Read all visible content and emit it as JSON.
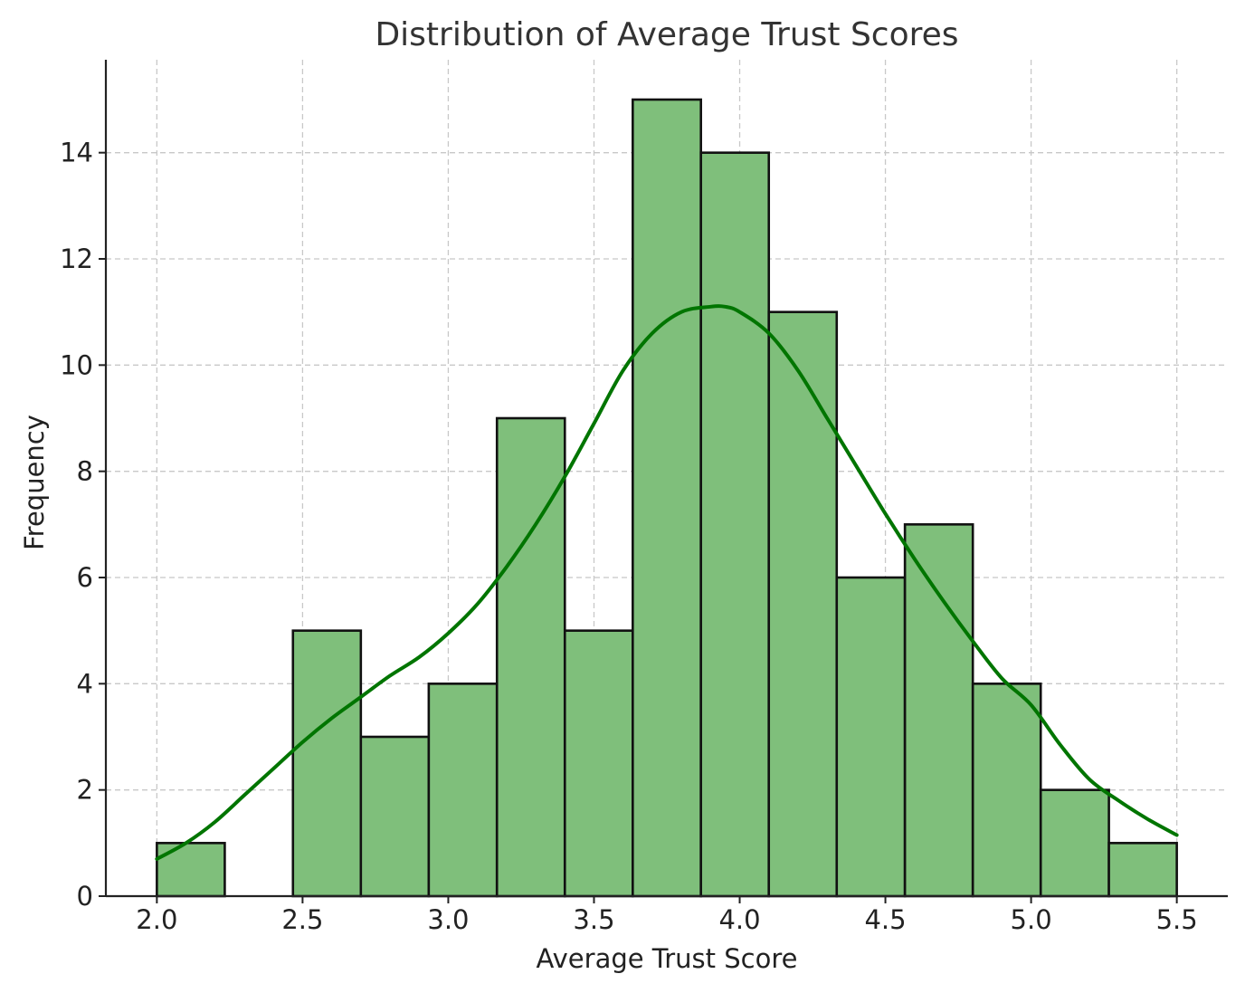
{
  "chart_data": {
    "type": "bar",
    "title": "Distribution of Average Trust Scores",
    "xlabel": "Average Trust Score",
    "ylabel": "Frequency",
    "xlim": [
      1.825,
      5.675
    ],
    "ylim": [
      0,
      15.75
    ],
    "xticks": [
      2.0,
      2.5,
      3.0,
      3.5,
      4.0,
      4.5,
      5.0,
      5.5
    ],
    "xtick_labels": [
      "2.0",
      "2.5",
      "3.0",
      "3.5",
      "4.0",
      "4.5",
      "5.0",
      "5.5"
    ],
    "yticks": [
      0,
      2,
      4,
      6,
      8,
      10,
      12,
      14
    ],
    "ytick_labels": [
      "0",
      "2",
      "4",
      "6",
      "8",
      "10",
      "12",
      "14"
    ],
    "grid": true,
    "bins": [
      {
        "start": 2.0,
        "end": 2.233,
        "count": 1
      },
      {
        "start": 2.233,
        "end": 2.467,
        "count": 0
      },
      {
        "start": 2.467,
        "end": 2.7,
        "count": 5
      },
      {
        "start": 2.7,
        "end": 2.933,
        "count": 3
      },
      {
        "start": 2.933,
        "end": 3.167,
        "count": 4
      },
      {
        "start": 3.167,
        "end": 3.4,
        "count": 9
      },
      {
        "start": 3.4,
        "end": 3.633,
        "count": 5
      },
      {
        "start": 3.633,
        "end": 3.867,
        "count": 15
      },
      {
        "start": 3.867,
        "end": 4.1,
        "count": 14
      },
      {
        "start": 4.1,
        "end": 4.333,
        "count": 11
      },
      {
        "start": 4.333,
        "end": 4.567,
        "count": 6
      },
      {
        "start": 4.567,
        "end": 4.8,
        "count": 7
      },
      {
        "start": 4.8,
        "end": 5.033,
        "count": 4
      },
      {
        "start": 5.033,
        "end": 5.267,
        "count": 2
      },
      {
        "start": 5.267,
        "end": 5.5,
        "count": 1
      }
    ],
    "kde_curve": {
      "x": [
        2.0,
        2.1,
        2.2,
        2.3,
        2.4,
        2.5,
        2.6,
        2.7,
        2.8,
        2.9,
        3.0,
        3.1,
        3.2,
        3.3,
        3.4,
        3.5,
        3.6,
        3.7,
        3.8,
        3.9,
        3.95,
        4.0,
        4.1,
        4.2,
        4.3,
        4.4,
        4.5,
        4.6,
        4.7,
        4.8,
        4.9,
        5.0,
        5.1,
        5.2,
        5.3,
        5.4,
        5.5
      ],
      "y": [
        0.7,
        1.0,
        1.4,
        1.9,
        2.4,
        2.9,
        3.35,
        3.75,
        4.15,
        4.5,
        4.95,
        5.5,
        6.2,
        7.0,
        7.9,
        8.9,
        9.9,
        10.6,
        11.0,
        11.1,
        11.1,
        11.0,
        10.6,
        9.9,
        9.0,
        8.1,
        7.2,
        6.35,
        5.55,
        4.8,
        4.1,
        3.6,
        2.85,
        2.2,
        1.8,
        1.45,
        1.15
      ]
    },
    "colors": {
      "bar_fill": "#7fbf7b",
      "bar_edge": "#111111",
      "kde_line": "#007500",
      "grid": "#c8c8c8",
      "axis": "#222222"
    }
  }
}
